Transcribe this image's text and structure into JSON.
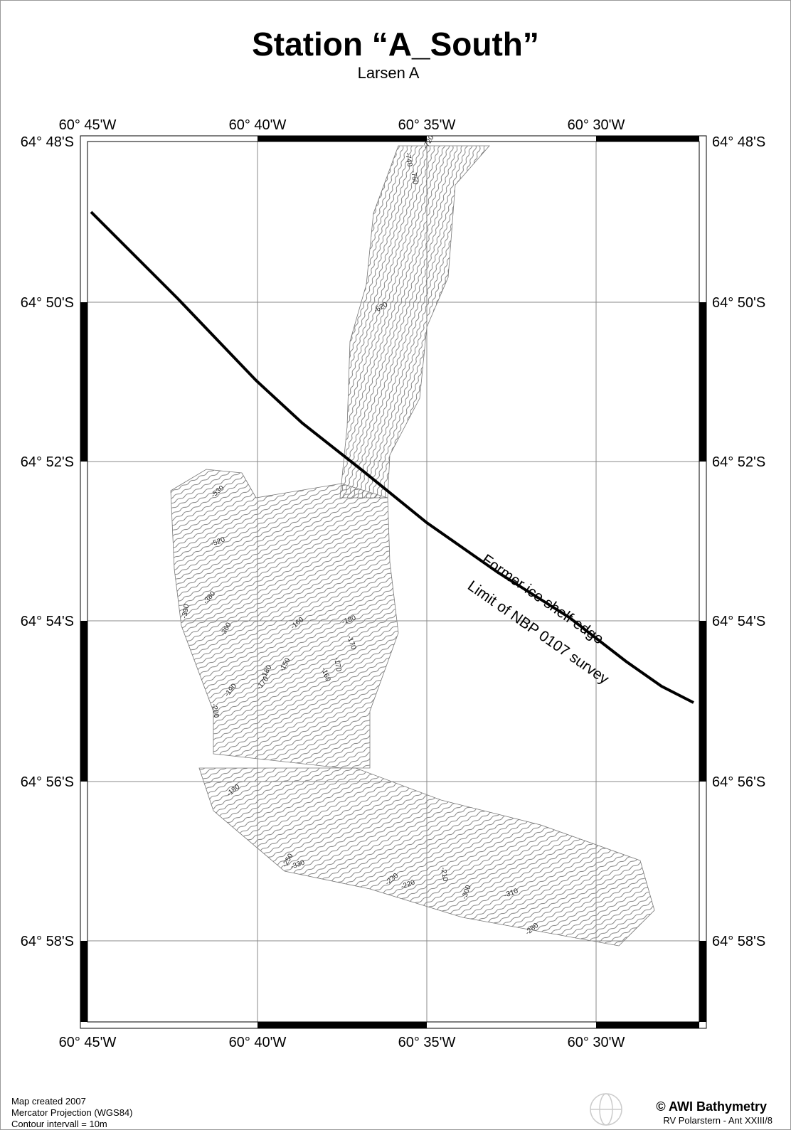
{
  "title": "Station “A_South”",
  "subtitle": "Larsen A",
  "longitude_labels": [
    "60° 45'W",
    "60° 40'W",
    "60° 35'W",
    "60° 30'W"
  ],
  "latitude_labels": [
    "64° 48'S",
    "64° 50'S",
    "64° 52'S",
    "64° 54'S",
    "64° 56'S",
    "64° 58'S"
  ],
  "contour_labels": [
    "-740",
    "-720",
    "-750",
    "-620",
    "-530",
    "-520",
    "-390",
    "-380",
    "-360",
    "-160",
    "-180",
    "-170",
    "-150",
    "-160",
    "-170",
    "-180",
    "-170",
    "-190",
    "-200",
    "-180",
    "-250",
    "-330",
    "-230",
    "-220",
    "-210",
    "-300",
    "-310",
    "-280"
  ],
  "annotations": {
    "line_upper": "Former ice shelf edge",
    "line_lower": "Limit of NBP 0107 survey"
  },
  "footer": {
    "left": [
      "Map created 2007",
      "Mercator Projection (WGS84)",
      "Contour intervall = 10m"
    ],
    "right_title": "© AWI Bathymetry",
    "right_sub": "RV Polarstern - Ant XXIII/8"
  }
}
